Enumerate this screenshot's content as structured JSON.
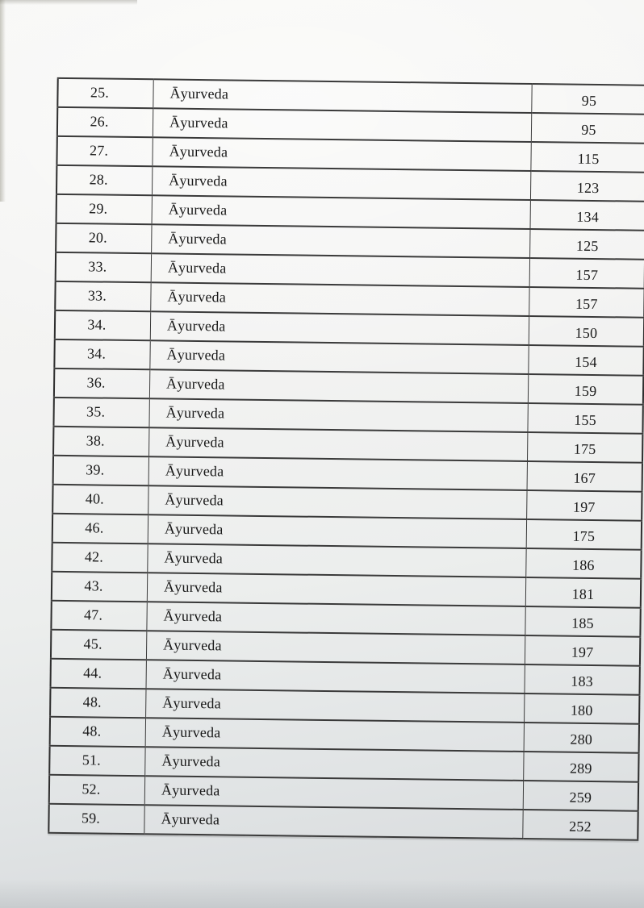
{
  "table": {
    "rows": [
      {
        "no": "25.",
        "subject": "Āyurveda",
        "value": "95"
      },
      {
        "no": "26.",
        "subject": "Āyurveda",
        "value": "95"
      },
      {
        "no": "27.",
        "subject": "Āyurveda",
        "value": "115"
      },
      {
        "no": "28.",
        "subject": "Āyurveda",
        "value": "123"
      },
      {
        "no": "29.",
        "subject": "Āyurveda",
        "value": "134"
      },
      {
        "no": "20.",
        "subject": "Āyurveda",
        "value": "125"
      },
      {
        "no": "33.",
        "subject": "Āyurveda",
        "value": "157"
      },
      {
        "no": "33.",
        "subject": "Āyurveda",
        "value": "157"
      },
      {
        "no": "34.",
        "subject": "Āyurveda",
        "value": "150"
      },
      {
        "no": "34.",
        "subject": "Āyurveda",
        "value": "154"
      },
      {
        "no": "36.",
        "subject": "Āyurveda",
        "value": "159"
      },
      {
        "no": "35.",
        "subject": "Āyurveda",
        "value": "155"
      },
      {
        "no": "38.",
        "subject": "Āyurveda",
        "value": "175"
      },
      {
        "no": "39.",
        "subject": "Āyurveda",
        "value": "167"
      },
      {
        "no": "40.",
        "subject": "Āyurveda",
        "value": "197"
      },
      {
        "no": "46.",
        "subject": "Āyurveda",
        "value": "175"
      },
      {
        "no": "42.",
        "subject": "Āyurveda",
        "value": "186"
      },
      {
        "no": "43.",
        "subject": "Āyurveda",
        "value": "181"
      },
      {
        "no": "47.",
        "subject": "Āyurveda",
        "value": "185"
      },
      {
        "no": "45.",
        "subject": "Āyurveda",
        "value": "197"
      },
      {
        "no": "44.",
        "subject": "Āyurveda",
        "value": "183"
      },
      {
        "no": "48.",
        "subject": "Āyurveda",
        "value": "180"
      },
      {
        "no": "48.",
        "subject": "Āyurveda",
        "value": "280"
      },
      {
        "no": "51.",
        "subject": "Āyurveda",
        "value": "289"
      },
      {
        "no": "52.",
        "subject": "Āyurveda",
        "value": "259"
      },
      {
        "no": "59.",
        "subject": "Āyurveda",
        "value": "252"
      }
    ]
  },
  "colors": {
    "paper_top": "#f7f7f5",
    "paper_bottom": "#d6d9db",
    "table_line": "#3a3a3a",
    "ink": "#191919"
  }
}
